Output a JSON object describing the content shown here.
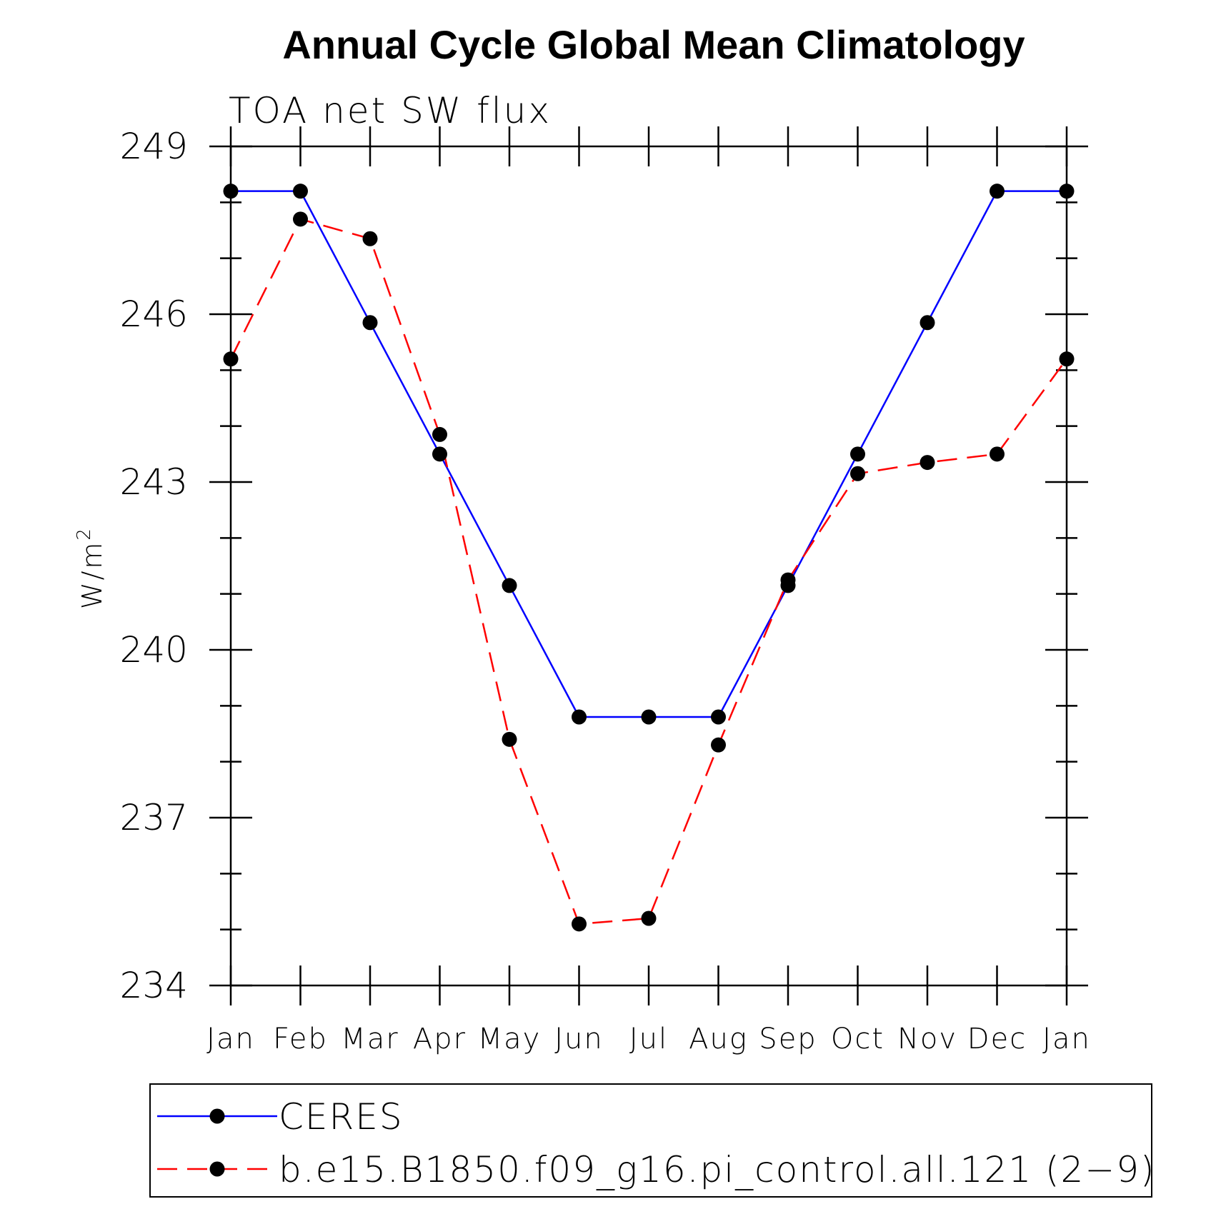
{
  "chart_data": {
    "type": "line",
    "title": "Annual Cycle Global Mean Climatology",
    "subtitle": "TOA net SW flux",
    "ylabel": "W/m",
    "ylabel_superscript": "2",
    "xlabel": "",
    "categories": [
      "Jan",
      "Feb",
      "Mar",
      "Apr",
      "May",
      "Jun",
      "Jul",
      "Aug",
      "Sep",
      "Oct",
      "Nov",
      "Dec",
      "Jan"
    ],
    "ylim": [
      234,
      249
    ],
    "yticks": [
      234,
      237,
      240,
      243,
      246,
      249
    ],
    "ytick_labels": [
      "234",
      "237",
      "240",
      "243",
      "246",
      "249"
    ],
    "grid": false,
    "legend_position": "bottom",
    "series": [
      {
        "name": "CERES",
        "color": "#0000ff",
        "dash": "solid",
        "values": [
          248.2,
          248.2,
          245.85,
          243.5,
          241.15,
          238.8,
          238.8,
          238.8,
          241.15,
          243.5,
          245.85,
          248.2,
          248.2
        ]
      },
      {
        "name": "b.e15.B1850.f09_g16.pi_control.all.121 (2−9)",
        "color": "#ff0000",
        "dash": "dashed",
        "values": [
          245.2,
          247.7,
          247.35,
          243.85,
          238.4,
          235.1,
          235.2,
          238.3,
          241.25,
          243.15,
          243.35,
          243.5,
          245.2
        ]
      }
    ]
  }
}
